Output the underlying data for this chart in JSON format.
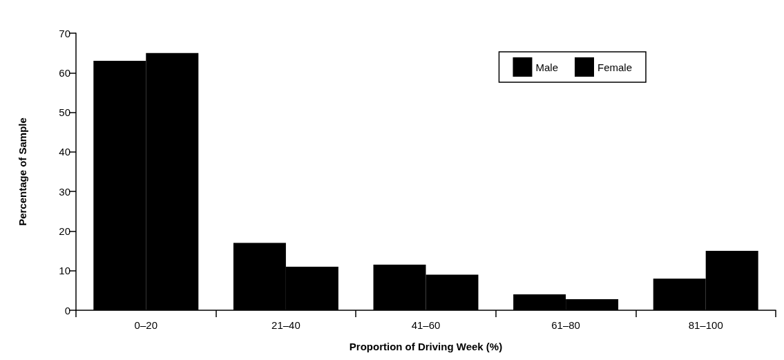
{
  "chart_data": {
    "type": "bar",
    "xlabel": "Proportion of Driving Week (%)",
    "ylabel": "Percentage of Sample",
    "categories": [
      "0–20",
      "21–40",
      "41–60",
      "61–80",
      "81–100"
    ],
    "series": [
      {
        "name": "Male",
        "color": "#000000",
        "values": [
          63,
          17,
          11.5,
          4,
          8
        ]
      },
      {
        "name": "Female",
        "color": "#000000",
        "values": [
          65,
          11,
          9,
          2.8,
          15
        ]
      }
    ],
    "ylim": [
      0,
      70
    ],
    "yticks": [
      0,
      10,
      20,
      30,
      40,
      50,
      60,
      70
    ],
    "grid": false,
    "legend": "top right"
  }
}
